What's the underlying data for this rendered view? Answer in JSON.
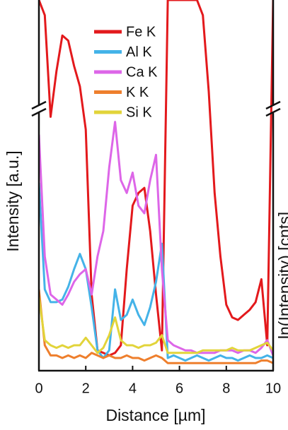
{
  "chart_data": {
    "type": "line",
    "xlabel": "Distance [µm]",
    "ylabel": "Intensity [a.u.]",
    "y2label": "ln(Intensity) [cnts]",
    "xlim": [
      0,
      10
    ],
    "xticks": [
      0,
      2,
      4,
      6,
      8,
      10
    ],
    "ylim": [
      0,
      146
    ],
    "x": [
      0,
      0.25,
      0.5,
      0.75,
      1,
      1.25,
      1.5,
      1.75,
      2,
      2.25,
      2.5,
      2.75,
      3,
      3.25,
      3.5,
      3.75,
      4,
      4.25,
      4.5,
      4.75,
      5,
      5.25,
      5.5,
      5.75,
      6,
      6.25,
      6.5,
      6.75,
      7,
      7.25,
      7.5,
      7.75,
      8,
      8.25,
      8.5,
      8.75,
      9,
      9.25,
      9.5,
      9.75,
      10
    ],
    "series": [
      {
        "name": "Fe K",
        "color": "#e3191c",
        "values": [
          146,
          140,
          100,
          118,
          132,
          130,
          120,
          112,
          95,
          30,
          8,
          7,
          6,
          7,
          10,
          40,
          65,
          70,
          72,
          55,
          30,
          8,
          146,
          146,
          146,
          146,
          146,
          146,
          140,
          110,
          70,
          45,
          26,
          21,
          20,
          22,
          24,
          27,
          36,
          10,
          146
        ]
      },
      {
        "name": "Al K",
        "color": "#44b3e8",
        "values": [
          74,
          32,
          27,
          27,
          28,
          33,
          40,
          46,
          40,
          25,
          8,
          5,
          8,
          32,
          20,
          22,
          28,
          22,
          18,
          25,
          35,
          50,
          5,
          6,
          5,
          4,
          5,
          6,
          5,
          4,
          5,
          6,
          5,
          5,
          4,
          5,
          6,
          5,
          5,
          6,
          5
        ]
      },
      {
        "name": "Ca K",
        "color": "#dd66e8",
        "values": [
          93,
          45,
          30,
          28,
          26,
          30,
          35,
          38,
          40,
          30,
          45,
          55,
          80,
          98,
          75,
          70,
          78,
          65,
          62,
          75,
          85,
          40,
          12,
          10,
          9,
          8,
          8,
          7,
          7,
          7,
          7,
          8,
          8,
          8,
          7,
          8,
          8,
          7,
          9,
          12,
          6
        ]
      },
      {
        "name": "K K",
        "color": "#ee7f2d",
        "values": [
          32,
          10,
          6,
          6,
          5,
          6,
          5,
          6,
          5,
          7,
          6,
          5,
          6,
          5,
          5,
          6,
          5,
          5,
          4,
          5,
          6,
          5,
          3,
          3,
          3,
          3,
          3,
          3,
          3,
          3,
          3,
          3,
          3,
          3,
          3,
          3,
          3,
          3,
          4,
          4,
          3
        ]
      },
      {
        "name": "Si K",
        "color": "#e2d43a",
        "values": [
          29,
          12,
          10,
          9,
          10,
          9,
          10,
          10,
          13,
          10,
          7,
          9,
          14,
          21,
          12,
          10,
          10,
          9,
          10,
          10,
          11,
          14,
          7,
          7,
          7,
          7,
          7,
          7,
          8,
          8,
          8,
          8,
          8,
          9,
          8,
          8,
          8,
          9,
          10,
          11,
          8
        ]
      }
    ]
  }
}
